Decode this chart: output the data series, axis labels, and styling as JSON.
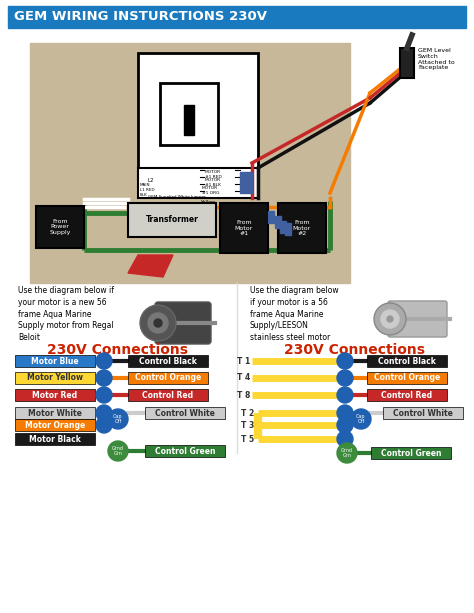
{
  "title": "GEM WIRING INSTURCTIONS 230V",
  "title_bg": "#1a7abf",
  "title_color": "white",
  "bg_color": "white",
  "main_bg": "#c8b89a",
  "left_title": "230V Connections",
  "right_title": "230V Connections",
  "left_desc": "Use the diagram below if\nyour motor is a new 56\nframe Aqua Marine\nSupply motor from Regal\nBeloit",
  "right_desc": "Use the diagram below\nif your motor is a 56\nframe Aqua Marine\nSupply/LEESON\nstainless steel motor",
  "left_rows": [
    {
      "label": "Motor Blue",
      "lc": "white",
      "wc": "#2979c8",
      "rl": "Control Black",
      "rc": "#1a1a1a",
      "rtc": "white",
      "type": "normal"
    },
    {
      "label": "Motor Yellow",
      "lc": "#333",
      "wc": "#fdd835",
      "rl": "Control Orange",
      "rc": "#f57c00",
      "rtc": "white",
      "type": "normal"
    },
    {
      "label": "Motor Red",
      "lc": "white",
      "wc": "#c62828",
      "rl": "Control Red",
      "rc": "#c62828",
      "rtc": "white",
      "type": "normal"
    },
    {
      "label": "Motor White",
      "lc": "#333",
      "wc": "#cccccc",
      "rl": "Control White",
      "rc": "#cccccc",
      "rtc": "#333",
      "type": "white_cap"
    },
    {
      "label": "Motor Orange",
      "lc": "white",
      "wc": "#f57c00",
      "rl": "",
      "rc": "none",
      "rtc": "none",
      "type": "orange_cap"
    },
    {
      "label": "Motor Black",
      "lc": "white",
      "wc": "#1a1a1a",
      "rl": "Control Green",
      "rc": "#2e7d32",
      "rtc": "white",
      "type": "black_ground"
    }
  ],
  "right_rows": [
    {
      "label": "T 1",
      "lc": "#333",
      "wc": "#fdd835",
      "rl": "Control Black",
      "rc": "#1a1a1a",
      "rtc": "white",
      "type": "normal"
    },
    {
      "label": "T 4",
      "lc": "#333",
      "wc": "#fdd835",
      "rl": "Control Orange",
      "rc": "#f57c00",
      "rtc": "white",
      "type": "normal"
    },
    {
      "label": "T 8",
      "lc": "#333",
      "wc": "#fdd835",
      "rl": "Control Red",
      "rc": "#c62828",
      "rtc": "white",
      "type": "normal"
    },
    {
      "label": "T 2",
      "lc": "#333",
      "wc": "#fdd835",
      "rl": "Control White",
      "rc": "#cccccc",
      "rtc": "#333",
      "type": "white_cap"
    },
    {
      "label": "T 3",
      "lc": "#333",
      "wc": "#fdd835",
      "rl": "",
      "rc": "none",
      "rtc": "none",
      "type": "t3_cap"
    },
    {
      "label": "T 5",
      "lc": "#333",
      "wc": "#fdd835",
      "rl": "Control Green",
      "rc": "#2e7d32",
      "rtc": "white",
      "type": "t5_ground"
    }
  ],
  "connector_color": "#2060b0",
  "cap_color": "#2060b0",
  "ground_color": "#3d8b3d",
  "title_fontsize": 10,
  "row_fontsize": 5.5
}
